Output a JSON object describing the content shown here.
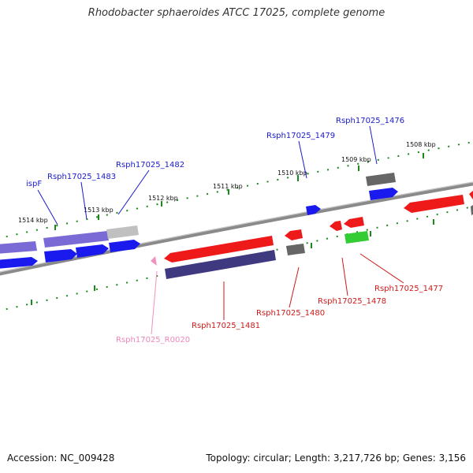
{
  "title": "Rhodobacter sphaeroides ATCC 17025, complete genome",
  "footer": {
    "accession": "Accession: NC_009428",
    "topology": "Topology: circular; Length: 3,217,726 bp; Genes: 3,156"
  },
  "colors": {
    "backbone": "#8a8a8a",
    "scale_ticks": "#1a8a1a",
    "plus_label": "#1a1acc",
    "minus_label": "#cc1a1a",
    "rna_label": "#ee88bb",
    "gene_blue": "#1a1aee",
    "gene_red": "#ee1a1a",
    "gene_lilac": "#7a6ad6",
    "gene_navy": "#3f3a80",
    "gene_gray": "#666666",
    "gene_lightgray": "#c0c0c0",
    "gene_green": "#33cc33",
    "gene_pink": "#f090c0"
  },
  "kbp_ticks": [
    "1514 kbp",
    "1513 kbp",
    "1512 kbp",
    "1511 kbp",
    "1510 kbp",
    "1509 kbp",
    "1508 kbp"
  ],
  "labels": {
    "ispF": "ispF",
    "r1483": "Rsph17025_1483",
    "r1482": "Rsph17025_1482",
    "r1479": "Rsph17025_1479",
    "r1476": "Rsph17025_1476",
    "r0020": "Rsph17025_R0020",
    "r1481": "Rsph17025_1481",
    "r1480": "Rsph17025_1480",
    "r1478": "Rsph17025_1478",
    "r1477": "Rsph17025_1477"
  }
}
